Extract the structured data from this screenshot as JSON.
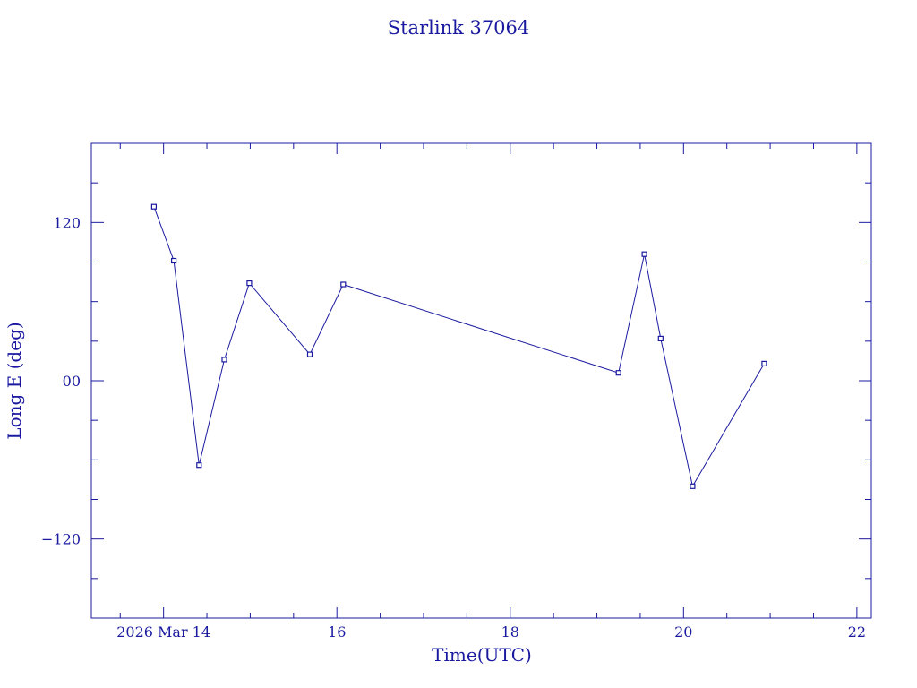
{
  "chart_data": {
    "type": "line",
    "title": "Starlink 37064",
    "xlabel": "Time(UTC)",
    "ylabel": "Long E (deg)",
    "xlim": [
      "2026-03-13T04:00",
      "2026-03-22T04:00"
    ],
    "ylim": [
      -180,
      180
    ],
    "x_ticks": [
      {
        "value": "2026-03-14T00:00",
        "label": "2026 Mar 14"
      },
      {
        "value": "2026-03-16T00:00",
        "label": "16"
      },
      {
        "value": "2026-03-18T00:00",
        "label": "18"
      },
      {
        "value": "2026-03-20T00:00",
        "label": "20"
      },
      {
        "value": "2026-03-22T00:00",
        "label": "22"
      }
    ],
    "y_ticks": [
      {
        "value": 120,
        "label": "120"
      },
      {
        "value": 0,
        "label": "00"
      },
      {
        "value": -120,
        "label": "−120"
      }
    ],
    "grid": false,
    "series": [
      {
        "color": "#1a1aa0",
        "points": [
          {
            "x": "2026-03-13T21:20",
            "y": 132
          },
          {
            "x": "2026-03-14T02:50",
            "y": 91
          },
          {
            "x": "2026-03-14T09:50",
            "y": -64
          },
          {
            "x": "2026-03-14T16:50",
            "y": 16
          },
          {
            "x": "2026-03-14T23:45",
            "y": 74
          },
          {
            "x": "2026-03-15T16:30",
            "y": 20
          },
          {
            "x": "2026-03-16T01:45",
            "y": 73
          },
          {
            "x": "2026-03-19T06:00",
            "y": 6
          },
          {
            "x": "2026-03-19T13:10",
            "y": 96
          },
          {
            "x": "2026-03-19T17:40",
            "y": 32
          },
          {
            "x": "2026-03-20T02:30",
            "y": -80
          },
          {
            "x": "2026-03-20T22:20",
            "y": 13
          }
        ]
      }
    ]
  }
}
